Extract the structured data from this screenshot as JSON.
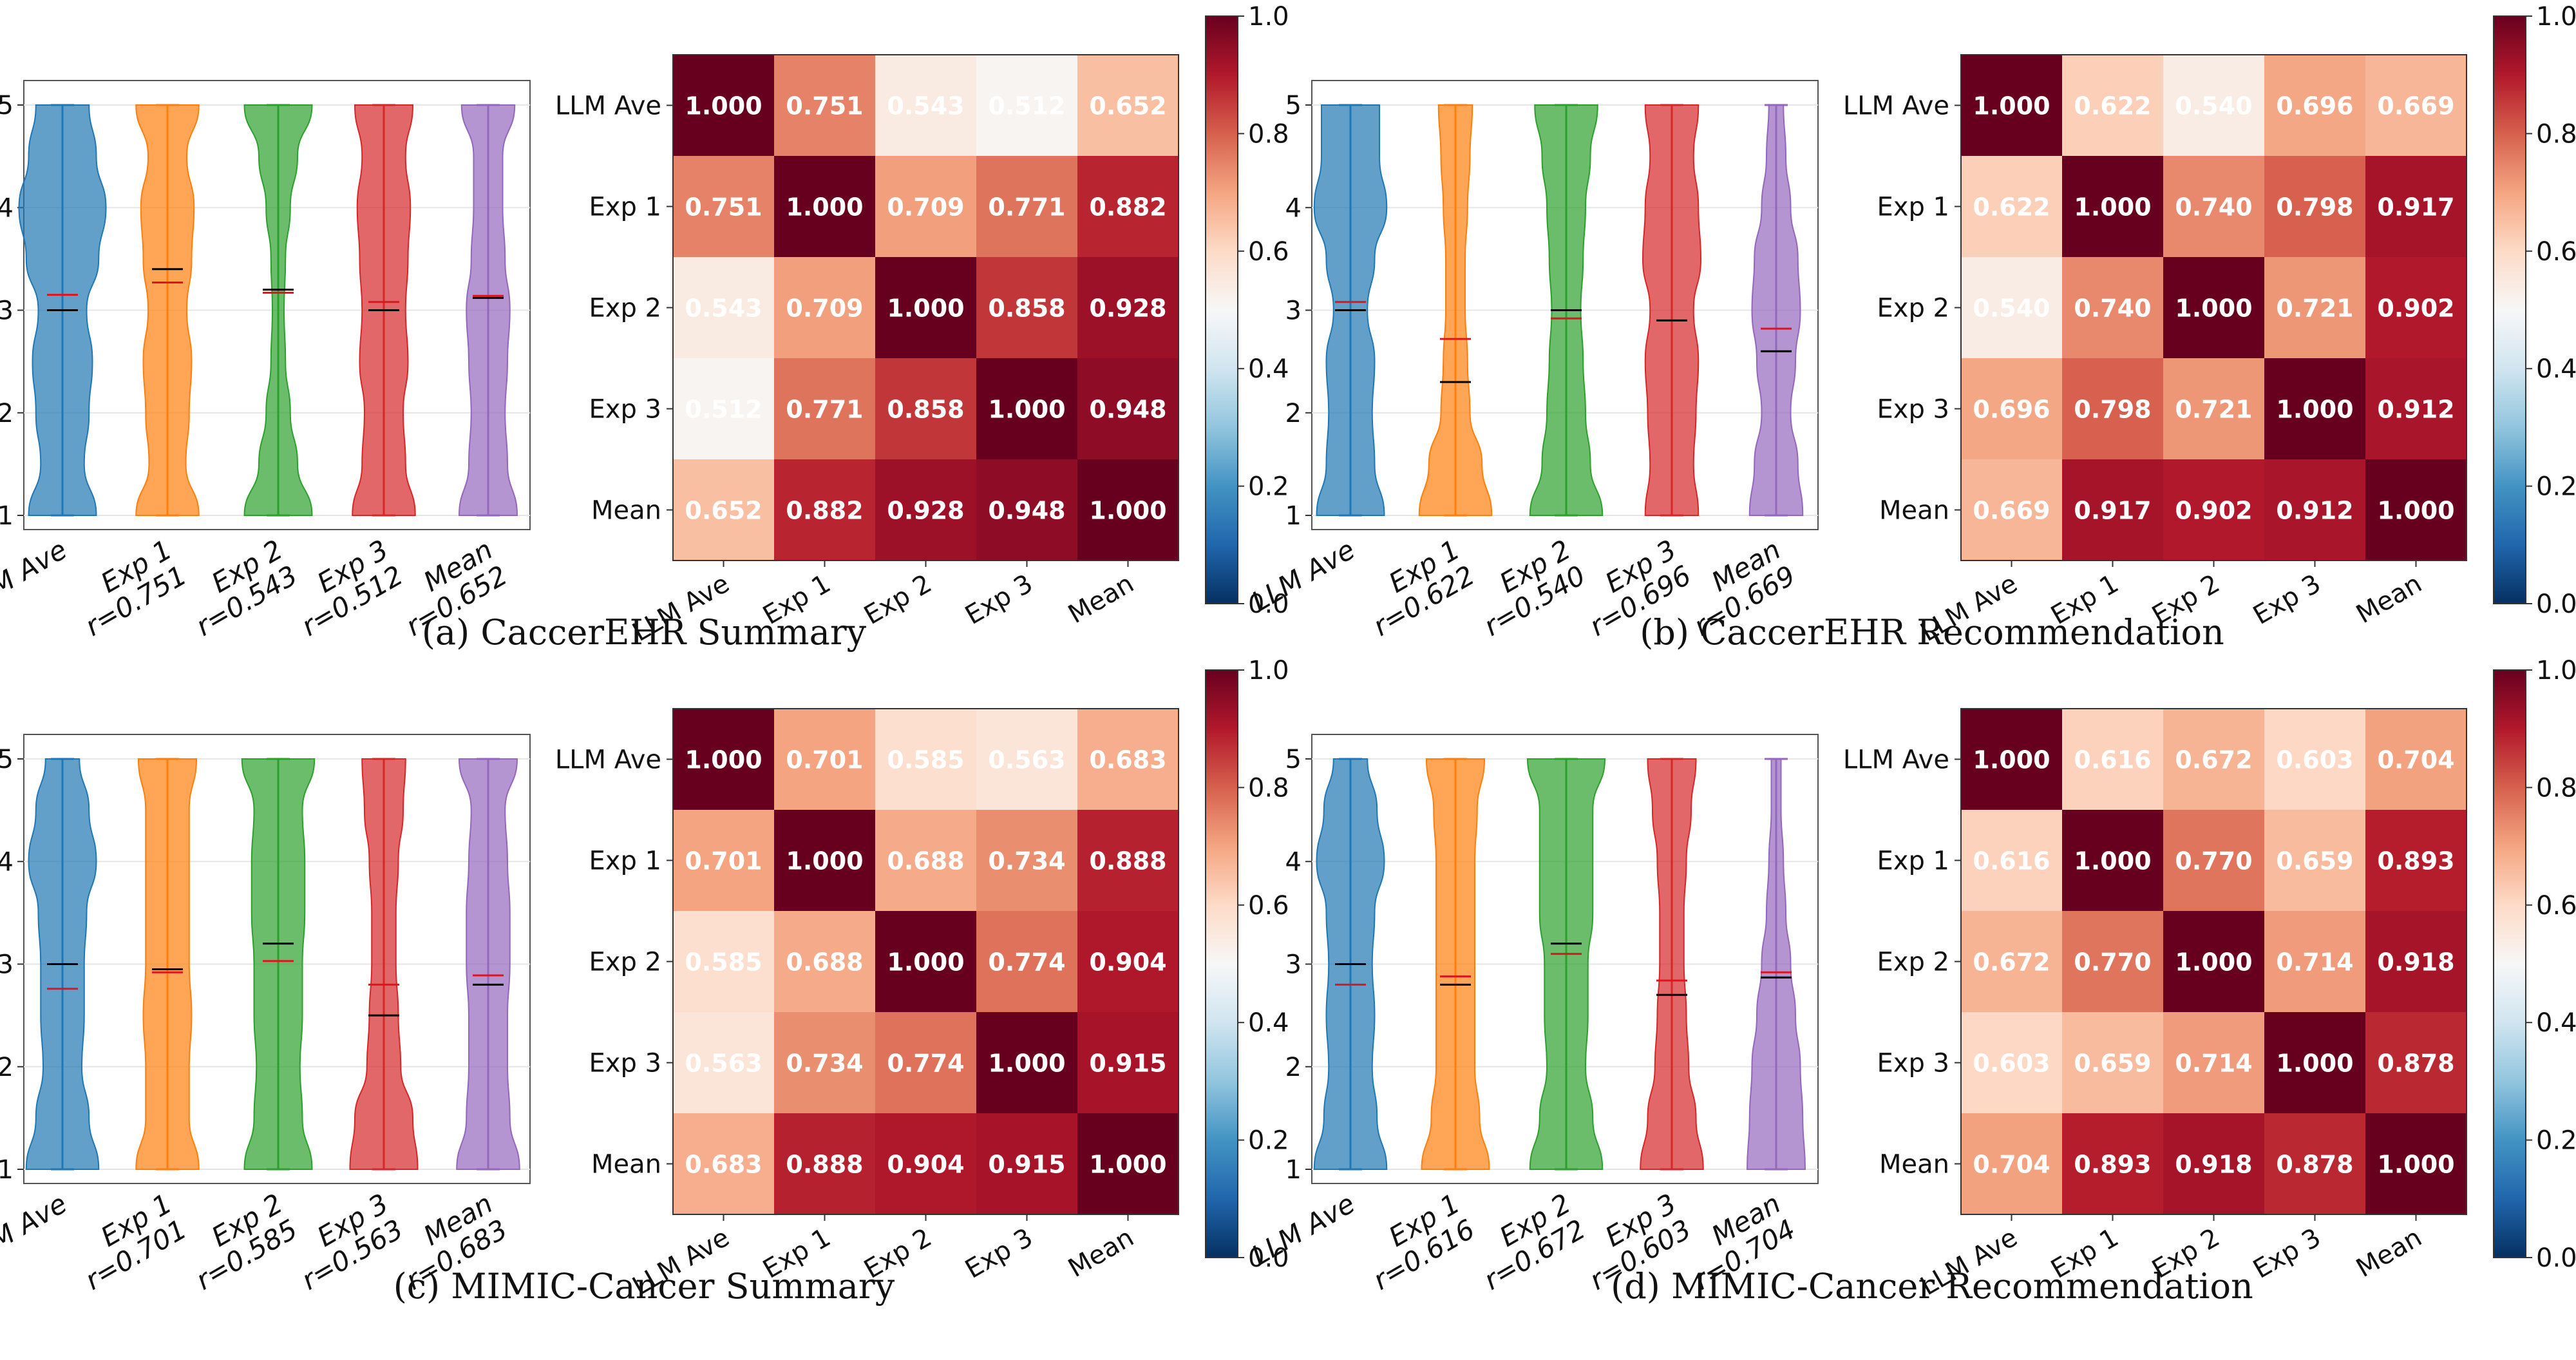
{
  "chart_data": [
    {
      "id": "a",
      "caption": "(a) CaccerEHR Summary",
      "violin": {
        "type": "violin",
        "ylim": [
          1,
          5
        ],
        "yticks": [
          "1",
          "2",
          "3",
          "4",
          "5"
        ],
        "categories": [
          {
            "label": "LLM Ave",
            "r": "",
            "median": 3.0,
            "mean": 3.15,
            "color": "#1f77b4",
            "widths": [
              0.7,
              0.45,
              0.55,
              0.62,
              0.5,
              0.75,
              0.9,
              0.7,
              0.55
            ]
          },
          {
            "label": "Exp 1",
            "r": "r=0.751",
            "median": 3.4,
            "mean": 3.27,
            "color": "#ff7f0e",
            "widths": [
              0.65,
              0.38,
              0.45,
              0.5,
              0.4,
              0.5,
              0.55,
              0.4,
              0.65
            ]
          },
          {
            "label": "Exp 2",
            "r": "r=0.543",
            "median": 3.2,
            "mean": 3.17,
            "color": "#2ca02c",
            "widths": [
              0.7,
              0.4,
              0.25,
              0.15,
              0.12,
              0.15,
              0.25,
              0.4,
              0.7
            ]
          },
          {
            "label": "Exp 3",
            "r": "r=0.512",
            "median": 3.0,
            "mean": 3.08,
            "color": "#d62728",
            "widths": [
              0.65,
              0.45,
              0.4,
              0.5,
              0.45,
              0.5,
              0.55,
              0.45,
              0.6
            ]
          },
          {
            "label": "Mean",
            "r": "r=0.652",
            "median": 3.12,
            "mean": 3.14,
            "color": "#9467bd",
            "widths": [
              0.6,
              0.4,
              0.35,
              0.4,
              0.45,
              0.35,
              0.3,
              0.3,
              0.55
            ]
          }
        ]
      },
      "heatmap": {
        "type": "heatmap",
        "labels": [
          "LLM Ave",
          "Exp 1",
          "Exp 2",
          "Exp 3",
          "Mean"
        ],
        "values": [
          [
            1.0,
            0.751,
            0.543,
            0.512,
            0.652
          ],
          [
            0.751,
            1.0,
            0.709,
            0.771,
            0.882
          ],
          [
            0.543,
            0.709,
            1.0,
            0.858,
            0.928
          ],
          [
            0.512,
            0.771,
            0.858,
            1.0,
            0.948
          ],
          [
            0.652,
            0.882,
            0.928,
            0.948,
            1.0
          ]
        ],
        "value_labels": [
          [
            "1.000",
            "0.751",
            "0.543",
            "0.512",
            "0.652"
          ],
          [
            "0.751",
            "1.000",
            "0.709",
            "0.771",
            "0.882"
          ],
          [
            "0.543",
            "0.709",
            "1.000",
            "0.858",
            "0.928"
          ],
          [
            "0.512",
            "0.771",
            "0.858",
            "1.000",
            "0.948"
          ],
          [
            "0.652",
            "0.882",
            "0.928",
            "0.948",
            "1.000"
          ]
        ],
        "vmin": 0.0,
        "vmax": 1.0,
        "colorbar_ticks": [
          "0.0",
          "0.2",
          "0.4",
          "0.6",
          "0.8",
          "1.0"
        ]
      }
    },
    {
      "id": "b",
      "caption": "(b) CaccerEHR Recommendation",
      "violin": {
        "type": "violin",
        "ylim": [
          1,
          5
        ],
        "yticks": [
          "1",
          "2",
          "3",
          "4",
          "5"
        ],
        "categories": [
          {
            "label": "LLM Ave",
            "r": "",
            "median": 3.0,
            "mean": 3.08,
            "color": "#1f77b4",
            "widths": [
              0.7,
              0.5,
              0.45,
              0.5,
              0.35,
              0.5,
              0.75,
              0.6,
              0.6
            ]
          },
          {
            "label": "Exp 1",
            "r": "r=0.622",
            "median": 2.3,
            "mean": 2.72,
            "color": "#ff7f0e",
            "widths": [
              0.75,
              0.55,
              0.3,
              0.25,
              0.2,
              0.2,
              0.25,
              0.3,
              0.35
            ]
          },
          {
            "label": "Exp 2",
            "r": "r=0.540",
            "median": 3.0,
            "mean": 2.92,
            "color": "#2ca02c",
            "widths": [
              0.75,
              0.5,
              0.4,
              0.35,
              0.3,
              0.35,
              0.4,
              0.5,
              0.65
            ]
          },
          {
            "label": "Exp 3",
            "r": "r=0.696",
            "median": 2.9,
            "mean": 2.9,
            "color": "#d62728",
            "widths": [
              0.55,
              0.45,
              0.5,
              0.55,
              0.45,
              0.6,
              0.55,
              0.45,
              0.55
            ]
          },
          {
            "label": "Mean",
            "r": "r=0.669",
            "median": 2.6,
            "mean": 2.82,
            "color": "#9467bd",
            "widths": [
              0.55,
              0.45,
              0.3,
              0.4,
              0.5,
              0.45,
              0.3,
              0.2,
              0.15
            ]
          }
        ]
      },
      "heatmap": {
        "type": "heatmap",
        "labels": [
          "LLM Ave",
          "Exp 1",
          "Exp 2",
          "Exp 3",
          "Mean"
        ],
        "values": [
          [
            1.0,
            0.622,
            0.54,
            0.696,
            0.669
          ],
          [
            0.622,
            1.0,
            0.74,
            0.798,
            0.917
          ],
          [
            0.54,
            0.74,
            1.0,
            0.721,
            0.902
          ],
          [
            0.696,
            0.798,
            0.721,
            1.0,
            0.912
          ],
          [
            0.669,
            0.917,
            0.902,
            0.912,
            1.0
          ]
        ],
        "value_labels": [
          [
            "1.000",
            "0.622",
            "0.540",
            "0.696",
            "0.669"
          ],
          [
            "0.622",
            "1.000",
            "0.740",
            "0.798",
            "0.917"
          ],
          [
            "0.540",
            "0.740",
            "1.000",
            "0.721",
            "0.902"
          ],
          [
            "0.696",
            "0.798",
            "0.721",
            "1.000",
            "0.912"
          ],
          [
            "0.669",
            "0.917",
            "0.902",
            "0.912",
            "1.000"
          ]
        ],
        "vmin": 0.0,
        "vmax": 1.0,
        "colorbar_ticks": [
          "0.0",
          "0.2",
          "0.4",
          "0.6",
          "0.8",
          "1.0"
        ]
      }
    },
    {
      "id": "c",
      "caption": "(c) MIMIC-Cancer Summary",
      "violin": {
        "type": "violin",
        "ylim": [
          1,
          5
        ],
        "yticks": [
          "1",
          "2",
          "3",
          "4",
          "5"
        ],
        "categories": [
          {
            "label": "LLM Ave",
            "r": "",
            "median": 3.0,
            "mean": 2.76,
            "color": "#1f77b4",
            "widths": [
              0.75,
              0.55,
              0.4,
              0.45,
              0.45,
              0.5,
              0.7,
              0.55,
              0.35
            ]
          },
          {
            "label": "Exp 1",
            "r": "r=0.701",
            "median": 2.95,
            "mean": 2.92,
            "color": "#ff7f0e",
            "widths": [
              0.65,
              0.45,
              0.45,
              0.5,
              0.45,
              0.45,
              0.45,
              0.45,
              0.6
            ]
          },
          {
            "label": "Exp 2",
            "r": "r=0.585",
            "median": 3.2,
            "mean": 3.03,
            "color": "#2ca02c",
            "widths": [
              0.7,
              0.5,
              0.45,
              0.5,
              0.5,
              0.55,
              0.55,
              0.5,
              0.75
            ]
          },
          {
            "label": "Exp 3",
            "r": "r=0.563",
            "median": 2.5,
            "mean": 2.8,
            "color": "#d62728",
            "widths": [
              0.7,
              0.6,
              0.35,
              0.3,
              0.25,
              0.25,
              0.3,
              0.4,
              0.45
            ]
          },
          {
            "label": "Mean",
            "r": "r=0.683",
            "median": 2.8,
            "mean": 2.89,
            "color": "#9467bd",
            "widths": [
              0.65,
              0.45,
              0.4,
              0.4,
              0.45,
              0.45,
              0.4,
              0.35,
              0.6
            ]
          }
        ]
      },
      "heatmap": {
        "type": "heatmap",
        "labels": [
          "LLM Ave",
          "Exp 1",
          "Exp 2",
          "Exp 3",
          "Mean"
        ],
        "values": [
          [
            1.0,
            0.701,
            0.585,
            0.563,
            0.683
          ],
          [
            0.701,
            1.0,
            0.688,
            0.734,
            0.888
          ],
          [
            0.585,
            0.688,
            1.0,
            0.774,
            0.904
          ],
          [
            0.563,
            0.734,
            0.774,
            1.0,
            0.915
          ],
          [
            0.683,
            0.888,
            0.904,
            0.915,
            1.0
          ]
        ],
        "value_labels": [
          [
            "1.000",
            "0.701",
            "0.585",
            "0.563",
            "0.683"
          ],
          [
            "0.701",
            "1.000",
            "0.688",
            "0.734",
            "0.888"
          ],
          [
            "0.585",
            "0.688",
            "1.000",
            "0.774",
            "0.904"
          ],
          [
            "0.563",
            "0.734",
            "0.774",
            "1.000",
            "0.915"
          ],
          [
            "0.683",
            "0.888",
            "0.904",
            "0.915",
            "1.000"
          ]
        ],
        "vmin": 0.0,
        "vmax": 1.0,
        "colorbar_ticks": [
          "0.0",
          "0.2",
          "0.4",
          "0.6",
          "0.8",
          "1.0"
        ]
      }
    },
    {
      "id": "d",
      "caption": "(d) MIMIC-Cancer Recommendation",
      "violin": {
        "type": "violin",
        "ylim": [
          1,
          5
        ],
        "yticks": [
          "1",
          "2",
          "3",
          "4",
          "5"
        ],
        "categories": [
          {
            "label": "LLM Ave",
            "r": "",
            "median": 3.0,
            "mean": 2.8,
            "color": "#1f77b4",
            "widths": [
              0.75,
              0.55,
              0.45,
              0.5,
              0.45,
              0.5,
              0.7,
              0.55,
              0.35
            ]
          },
          {
            "label": "Exp 1",
            "r": "r=0.616",
            "median": 2.8,
            "mean": 2.88,
            "color": "#ff7f0e",
            "widths": [
              0.7,
              0.5,
              0.4,
              0.4,
              0.4,
              0.4,
              0.4,
              0.45,
              0.6
            ]
          },
          {
            "label": "Exp 2",
            "r": "r=0.672",
            "median": 3.2,
            "mean": 3.1,
            "color": "#2ca02c",
            "widths": [
              0.75,
              0.55,
              0.4,
              0.45,
              0.45,
              0.55,
              0.55,
              0.55,
              0.8
            ]
          },
          {
            "label": "Exp 3",
            "r": "r=0.603",
            "median": 2.7,
            "mean": 2.84,
            "color": "#d62728",
            "widths": [
              0.65,
              0.5,
              0.35,
              0.3,
              0.25,
              0.25,
              0.3,
              0.4,
              0.5
            ]
          },
          {
            "label": "Mean",
            "r": "r=0.704",
            "median": 2.87,
            "mean": 2.92,
            "color": "#9467bd",
            "widths": [
              0.6,
              0.55,
              0.5,
              0.4,
              0.3,
              0.2,
              0.15,
              0.1,
              0.1
            ]
          }
        ]
      },
      "heatmap": {
        "type": "heatmap",
        "labels": [
          "LLM Ave",
          "Exp 1",
          "Exp 2",
          "Exp 3",
          "Mean"
        ],
        "values": [
          [
            1.0,
            0.616,
            0.672,
            0.603,
            0.704
          ],
          [
            0.616,
            1.0,
            0.77,
            0.659,
            0.893
          ],
          [
            0.672,
            0.77,
            1.0,
            0.714,
            0.918
          ],
          [
            0.603,
            0.659,
            0.714,
            1.0,
            0.878
          ],
          [
            0.704,
            0.893,
            0.918,
            0.878,
            1.0
          ]
        ],
        "value_labels": [
          [
            "1.000",
            "0.616",
            "0.672",
            "0.603",
            "0.704"
          ],
          [
            "0.616",
            "1.000",
            "0.770",
            "0.659",
            "0.893"
          ],
          [
            "0.672",
            "0.770",
            "1.000",
            "0.714",
            "0.918"
          ],
          [
            "0.603",
            "0.659",
            "0.714",
            "1.000",
            "0.878"
          ],
          [
            "0.704",
            "0.893",
            "0.918",
            "0.878",
            "1.000"
          ]
        ],
        "vmin": 0.0,
        "vmax": 1.0,
        "colorbar_ticks": [
          "0.0",
          "0.2",
          "0.4",
          "0.6",
          "0.8",
          "1.0"
        ]
      }
    }
  ]
}
